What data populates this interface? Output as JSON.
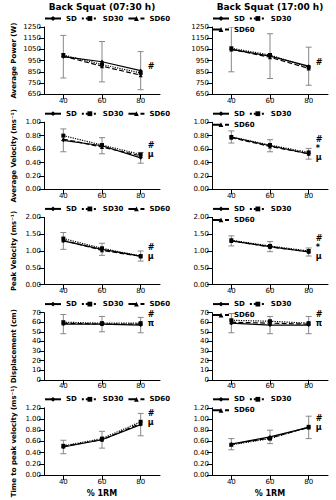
{
  "chart_data": [
    {
      "type": "line",
      "title": "Back Squat (07:30 h)",
      "ylabel": "Average Power (W)",
      "legend": "top",
      "grid": false,
      "categories": [
        40,
        60,
        80
      ],
      "series": [
        {
          "name": "SD",
          "color": "#000000",
          "line_style": "solid",
          "marker": "diamond",
          "values": [
            985,
            940,
            860
          ],
          "errors": [
            190,
            180,
            170
          ]
        },
        {
          "name": "SD30",
          "color": "#000000",
          "line_style": "dotted",
          "marker": "rect",
          "values": [
            1000,
            915,
            840
          ]
        },
        {
          "name": "SD60",
          "color": "#000000",
          "line_style": "dashed",
          "marker": "triangle",
          "values": [
            990,
            900,
            820
          ]
        }
      ],
      "ylim": [
        650,
        1250
      ],
      "yticks": [
        650,
        750,
        850,
        950,
        1050,
        1150,
        1250
      ],
      "annotations": [
        "#"
      ]
    },
    {
      "type": "line",
      "title": "Back Squat (17:00 h)",
      "legend": "top",
      "grid": false,
      "categories": [
        40,
        60,
        80
      ],
      "series": [
        {
          "name": "SD",
          "color": "#000000",
          "line_style": "solid",
          "marker": "diamond",
          "values": [
            1050,
            990,
            900
          ],
          "errors": [
            200,
            200,
            170
          ]
        },
        {
          "name": "SD30",
          "color": "#000000",
          "line_style": "dotted",
          "marker": "rect",
          "values": [
            1060,
            1000,
            890
          ]
        },
        {
          "name": "SD60",
          "color": "#000000",
          "line_style": "dashed",
          "marker": "triangle",
          "values": [
            1050,
            980,
            880
          ]
        }
      ],
      "ylim": [
        650,
        1250
      ],
      "yticks": [
        650,
        750,
        850,
        950,
        1050,
        1150,
        1250
      ],
      "annotations": [
        "#"
      ]
    },
    {
      "type": "line",
      "ylabel": "Average Velocity (ms⁻¹)",
      "legend": "top",
      "grid": false,
      "categories": [
        40,
        60,
        80
      ],
      "series": [
        {
          "name": "SD",
          "color": "#000000",
          "line_style": "solid",
          "marker": "diamond",
          "values": [
            0.73,
            0.65,
            0.47
          ],
          "errors": [
            0.17,
            0.12,
            0.08
          ]
        },
        {
          "name": "SD30",
          "color": "#000000",
          "line_style": "dotted",
          "marker": "rect",
          "values": [
            0.8,
            0.66,
            0.52
          ]
        },
        {
          "name": "SD60",
          "color": "#000000",
          "line_style": "dashed",
          "marker": "triangle",
          "values": [
            0.75,
            0.63,
            0.5
          ]
        }
      ],
      "ylim": [
        0,
        1
      ],
      "yticks": [
        {
          "value": 0,
          "label": "0.00"
        },
        {
          "value": 0.2,
          "label": "0.20"
        },
        {
          "value": 0.4,
          "label": "0.40"
        },
        {
          "value": 0.6,
          "label": "0.60"
        },
        {
          "value": 0.8,
          "label": "0.80"
        },
        {
          "value": 1,
          "label": "1.00"
        }
      ],
      "annotations": [
        "#",
        "μ"
      ]
    },
    {
      "type": "line",
      "legend": "top",
      "grid": false,
      "categories": [
        40,
        60,
        80
      ],
      "series": [
        {
          "name": "SD",
          "color": "#000000",
          "line_style": "solid",
          "marker": "diamond",
          "values": [
            0.78,
            0.65,
            0.53
          ],
          "errors": [
            0.09,
            0.09,
            0.08
          ]
        },
        {
          "name": "SD30",
          "color": "#000000",
          "line_style": "dotted",
          "marker": "rect",
          "values": [
            0.78,
            0.66,
            0.55
          ]
        },
        {
          "name": "SD60",
          "color": "#000000",
          "line_style": "dashed",
          "marker": "triangle",
          "values": [
            0.77,
            0.64,
            0.53
          ]
        }
      ],
      "ylim": [
        0,
        1
      ],
      "yticks": [
        {
          "value": 0,
          "label": "0.00"
        },
        {
          "value": 0.2,
          "label": "0.20"
        },
        {
          "value": 0.4,
          "label": "0.40"
        },
        {
          "value": 0.6,
          "label": "0.60"
        },
        {
          "value": 0.8,
          "label": "0.80"
        },
        {
          "value": 1,
          "label": "1.00"
        }
      ],
      "annotations": [
        "#",
        "*",
        "μ"
      ]
    },
    {
      "type": "line",
      "ylabel": "Peak Velocity (ms⁻¹)",
      "legend": "top",
      "grid": false,
      "categories": [
        40,
        60,
        80
      ],
      "series": [
        {
          "name": "SD",
          "color": "#000000",
          "line_style": "solid",
          "marker": "diamond",
          "values": [
            1.3,
            1.05,
            0.85
          ],
          "errors": [
            0.25,
            0.18,
            0.15
          ]
        },
        {
          "name": "SD30",
          "color": "#000000",
          "line_style": "dotted",
          "marker": "rect",
          "values": [
            1.37,
            1.08,
            0.85
          ]
        },
        {
          "name": "SD60",
          "color": "#000000",
          "line_style": "dashed",
          "marker": "triangle",
          "values": [
            1.32,
            1.02,
            0.84
          ]
        }
      ],
      "ylim": [
        0,
        2
      ],
      "yticks": [
        {
          "value": 0,
          "label": "0.00"
        },
        {
          "value": 0.5,
          "label": "0.50"
        },
        {
          "value": 1,
          "label": "1.00"
        },
        {
          "value": 1.5,
          "label": "1.50"
        },
        {
          "value": 2,
          "label": "2.00"
        }
      ],
      "annotations": [
        "#",
        "μ"
      ]
    },
    {
      "type": "line",
      "legend": "top",
      "grid": false,
      "categories": [
        40,
        60,
        80
      ],
      "series": [
        {
          "name": "SD",
          "color": "#000000",
          "line_style": "solid",
          "marker": "diamond",
          "values": [
            1.3,
            1.13,
            0.97
          ],
          "errors": [
            0.15,
            0.15,
            0.12
          ]
        },
        {
          "name": "SD30",
          "color": "#000000",
          "line_style": "dotted",
          "marker": "rect",
          "values": [
            1.32,
            1.15,
            1.0
          ]
        },
        {
          "name": "SD60",
          "color": "#000000",
          "line_style": "dashed",
          "marker": "triangle",
          "values": [
            1.3,
            1.12,
            0.98
          ]
        }
      ],
      "ylim": [
        0,
        2
      ],
      "yticks": [
        {
          "value": 0,
          "label": "0.00"
        },
        {
          "value": 0.5,
          "label": "0.50"
        },
        {
          "value": 1,
          "label": "1.00"
        },
        {
          "value": 1.5,
          "label": "1.50"
        },
        {
          "value": 2,
          "label": "2.00"
        }
      ],
      "annotations": [
        "#",
        "*",
        "μ"
      ]
    },
    {
      "type": "line",
      "ylabel": "Displacement (cm)",
      "legend": "top",
      "grid": false,
      "categories": [
        40,
        60,
        80
      ],
      "series": [
        {
          "name": "SD",
          "color": "#000000",
          "line_style": "solid",
          "marker": "diamond",
          "values": [
            58,
            58,
            57
          ],
          "errors": [
            10,
            8,
            8
          ]
        },
        {
          "name": "SD30",
          "color": "#000000",
          "line_style": "dotted",
          "marker": "rect",
          "values": [
            60,
            59,
            59
          ]
        },
        {
          "name": "SD60",
          "color": "#000000",
          "line_style": "dashed",
          "marker": "triangle",
          "values": [
            59,
            58,
            58
          ]
        }
      ],
      "ylim": [
        0,
        70
      ],
      "yticks": [
        0,
        10,
        20,
        30,
        40,
        50,
        60,
        70
      ],
      "annotations": [
        "#",
        "π"
      ]
    },
    {
      "type": "line",
      "legend": "top",
      "grid": false,
      "categories": [
        40,
        60,
        80
      ],
      "series": [
        {
          "name": "SD",
          "color": "#000000",
          "line_style": "solid",
          "marker": "diamond",
          "values": [
            59,
            57,
            57
          ],
          "errors": [
            10,
            9,
            9
          ]
        },
        {
          "name": "SD30",
          "color": "#000000",
          "line_style": "dotted",
          "marker": "rect",
          "values": [
            62,
            61,
            59
          ]
        },
        {
          "name": "SD60",
          "color": "#000000",
          "line_style": "dashed",
          "marker": "triangle",
          "values": [
            60,
            59,
            58
          ]
        }
      ],
      "ylim": [
        0,
        70
      ],
      "yticks": [
        0,
        10,
        20,
        30,
        40,
        50,
        60,
        70
      ],
      "annotations": [
        "#",
        "π"
      ]
    },
    {
      "type": "line",
      "ylabel": "Time to peak velocity (ms⁻¹)",
      "xlabel": "% 1RM",
      "legend": "top",
      "grid": false,
      "categories": [
        40,
        60,
        80
      ],
      "series": [
        {
          "name": "SD",
          "color": "#000000",
          "line_style": "solid",
          "marker": "diamond",
          "values": [
            0.5,
            0.63,
            0.9
          ],
          "errors": [
            0.12,
            0.15,
            0.2
          ]
        },
        {
          "name": "SD30",
          "color": "#000000",
          "line_style": "dotted",
          "marker": "rect",
          "values": [
            0.52,
            0.65,
            0.95
          ]
        },
        {
          "name": "SD60",
          "color": "#000000",
          "line_style": "dashed",
          "marker": "triangle",
          "values": [
            0.51,
            0.63,
            0.92
          ]
        }
      ],
      "ylim": [
        0,
        1.2
      ],
      "yticks": [
        {
          "value": 0,
          "label": "0.00"
        },
        {
          "value": 0.2,
          "label": "0.20"
        },
        {
          "value": 0.4,
          "label": "0.40"
        },
        {
          "value": 0.6,
          "label": "0.60"
        },
        {
          "value": 0.8,
          "label": "0.80"
        },
        {
          "value": 1,
          "label": "1.00"
        },
        {
          "value": 1.2,
          "label": "1.20"
        }
      ],
      "annotations": [
        "#",
        "μ"
      ]
    },
    {
      "type": "line",
      "xlabel": "% 1RM",
      "legend": "top",
      "grid": false,
      "categories": [
        40,
        60,
        80
      ],
      "series": [
        {
          "name": "SD",
          "color": "#000000",
          "line_style": "solid",
          "marker": "diamond",
          "values": [
            0.55,
            0.68,
            0.85
          ],
          "errors": [
            0.1,
            0.12,
            0.2
          ]
        },
        {
          "name": "SD30",
          "color": "#000000",
          "line_style": "dotted",
          "marker": "rect",
          "values": [
            0.54,
            0.65,
            0.86
          ]
        },
        {
          "name": "SD60",
          "color": "#000000",
          "line_style": "dashed",
          "marker": "triangle",
          "values": [
            0.55,
            0.66,
            0.85
          ]
        }
      ],
      "ylim": [
        0,
        1.2
      ],
      "yticks": [
        {
          "value": 0,
          "label": "0.00"
        },
        {
          "value": 0.2,
          "label": "0.20"
        },
        {
          "value": 0.4,
          "label": "0.40"
        },
        {
          "value": 0.6,
          "label": "0.60"
        },
        {
          "value": 0.8,
          "label": "0.80"
        },
        {
          "value": 1,
          "label": "1.00"
        },
        {
          "value": 1.2,
          "label": "1.20"
        }
      ],
      "annotations": [
        "#",
        "μ"
      ]
    }
  ]
}
